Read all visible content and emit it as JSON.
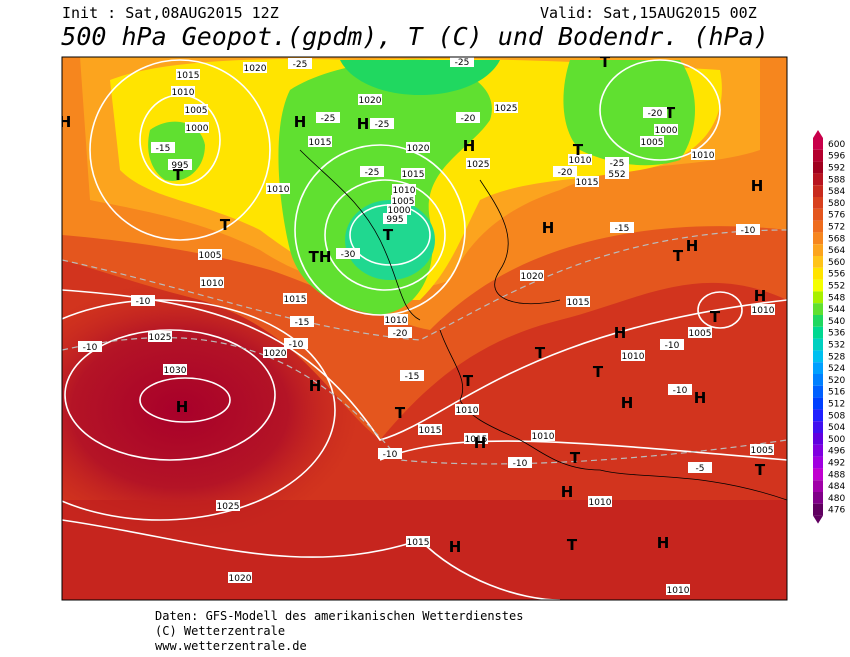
{
  "header": {
    "init": "Init : Sat,08AUG2015 12Z",
    "valid": "Valid: Sat,15AUG2015 00Z",
    "title": "500 hPa Geopot.(gpdm), T (C) und Bodendr. (hPa)"
  },
  "colorbar": {
    "ticks": [
      600,
      596,
      592,
      588,
      584,
      580,
      576,
      572,
      568,
      564,
      560,
      556,
      552,
      548,
      544,
      540,
      536,
      532,
      528,
      524,
      520,
      516,
      512,
      508,
      504,
      500,
      496,
      492,
      488,
      484,
      480,
      476
    ],
    "colors": [
      "#c8004a",
      "#b4002e",
      "#a0001e",
      "#b81420",
      "#c82a1e",
      "#d8401e",
      "#e4561e",
      "#ee6c1e",
      "#f6861e",
      "#fca41e",
      "#ffc41a",
      "#ffe400",
      "#f4ff00",
      "#a8f000",
      "#60e030",
      "#20d860",
      "#00d890",
      "#00d0c0",
      "#00c0f0",
      "#00a0ff",
      "#0080ff",
      "#0060ff",
      "#0040ff",
      "#2020ff",
      "#4010f0",
      "#6000e0",
      "#8000e0",
      "#a000e0",
      "#c000d0",
      "#a000a8",
      "#800088",
      "#600060"
    ]
  },
  "map": {
    "labels": [
      "1015",
      "1020",
      "1010",
      "1005",
      "1000",
      "995",
      "H",
      "T",
      "T",
      "1005",
      "1010",
      "1015",
      "1020",
      "1025",
      "1030",
      "H",
      "1025",
      "1020",
      "1015",
      "H",
      "-10",
      "-10",
      "-15",
      "-10",
      "H",
      "T",
      "-15",
      "T",
      "1015",
      "1010",
      "1015",
      "-10",
      "H",
      "1010",
      "-10",
      "T",
      "H",
      "1010",
      "T",
      "H",
      "1010",
      "-5",
      "1005",
      "T",
      "T",
      "H",
      "1010",
      "T",
      "H",
      "-10",
      "H",
      "-10",
      "1005",
      "T",
      "H",
      "1010",
      "-10",
      "H",
      "T",
      "H",
      "1015",
      "1020",
      "H",
      "-15",
      "1015",
      "1010",
      "T",
      "1010",
      "-20",
      "552",
      "-25",
      "1005",
      "1000",
      "T",
      "-20",
      "T",
      "-25",
      "1025",
      "H",
      "1025",
      "-20",
      "-25",
      "H",
      "1020",
      "1020",
      "1015",
      "1010",
      "1005",
      "1000",
      "995",
      "T",
      "-30",
      "-25",
      "H",
      "-25",
      "1015",
      "1010",
      "TH",
      "1010",
      "-20",
      "-15",
      "-25"
    ]
  },
  "footer": {
    "line1": "Daten: GFS-Modell des amerikanischen Wetterdienstes",
    "line2": "(C) Wetterzentrale",
    "line3": "www.wetterzentrale.de"
  }
}
